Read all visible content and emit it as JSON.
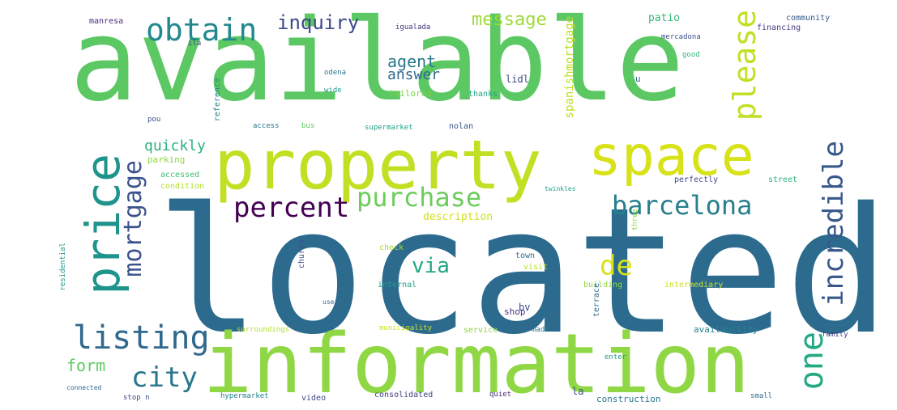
{
  "words": [
    {
      "text": "available",
      "color": "#5cc863"
    },
    {
      "text": "located",
      "color": "#2c6b8e"
    },
    {
      "text": "information",
      "color": "#8fd744"
    },
    {
      "text": "property",
      "color": "#c2df23"
    },
    {
      "text": "space",
      "color": "#d8e219"
    },
    {
      "text": "price",
      "color": "#1f948c"
    },
    {
      "text": "obtain",
      "color": "#23898e"
    },
    {
      "text": "please",
      "color": "#c2df23"
    },
    {
      "text": "purchase",
      "color": "#6ccd5a"
    },
    {
      "text": "percent",
      "color": "#440154"
    },
    {
      "text": "barcelona",
      "color": "#277f8e"
    },
    {
      "text": "incredible",
      "color": "#38588c"
    },
    {
      "text": "mortgage",
      "color": "#3b528b"
    },
    {
      "text": "listing",
      "color": "#31688e"
    },
    {
      "text": "city",
      "color": "#2a768e"
    },
    {
      "text": "one",
      "color": "#23a983"
    },
    {
      "text": "inquiry",
      "color": "#3e4989"
    },
    {
      "text": "message",
      "color": "#a0da39"
    },
    {
      "text": "agent",
      "color": "#2a788e"
    },
    {
      "text": "answer",
      "color": "#31688e"
    },
    {
      "text": "de",
      "color": "#d8e219"
    },
    {
      "text": "via",
      "color": "#22a884"
    },
    {
      "text": "form",
      "color": "#5ec962"
    },
    {
      "text": "quickly",
      "color": "#2db27d"
    },
    {
      "text": "description",
      "color": "#d0e11c"
    },
    {
      "text": "parking",
      "color": "#8fd744"
    },
    {
      "text": "accessed",
      "color": "#3dbc74"
    },
    {
      "text": "condition",
      "color": "#b5de2b"
    },
    {
      "text": "reference",
      "color": "#25848e"
    },
    {
      "text": "spanishmortgage",
      "color": "#bddf26"
    },
    {
      "text": "manresa",
      "color": "#472d7b"
    },
    {
      "text": "igualada",
      "color": "#46327e"
    },
    {
      "text": "patio",
      "color": "#35b779"
    },
    {
      "text": "community",
      "color": "#365c8d"
    },
    {
      "text": "mercadona",
      "color": "#3b528b"
    },
    {
      "text": "financing",
      "color": "#433e85"
    },
    {
      "text": "lidl",
      "color": "#3f4788"
    },
    {
      "text": "thanks",
      "color": "#20a486"
    },
    {
      "text": "tailored",
      "color": "#7ad151"
    },
    {
      "text": "odena",
      "color": "#2a788e"
    },
    {
      "text": "wide",
      "color": "#1e9b8a"
    },
    {
      "text": "access",
      "color": "#2a788e"
    },
    {
      "text": "bus",
      "color": "#5ec962"
    },
    {
      "text": "supermarket",
      "color": "#1fa187"
    },
    {
      "text": "nolan",
      "color": "#39568c"
    },
    {
      "text": "street",
      "color": "#2fb47c"
    },
    {
      "text": "perfectly",
      "color": "#3e4a89"
    },
    {
      "text": "twinkles",
      "color": "#20a386"
    },
    {
      "text": "church",
      "color": "#3e4a89"
    },
    {
      "text": "km",
      "color": "#31688e"
    },
    {
      "text": "check",
      "color": "#a0da39"
    },
    {
      "text": "town",
      "color": "#2d708e"
    },
    {
      "text": "visit",
      "color": "#b8de29"
    },
    {
      "text": "internal",
      "color": "#1f9e89"
    },
    {
      "text": "building",
      "color": "#93d741"
    },
    {
      "text": "intermediary",
      "color": "#cae11f"
    },
    {
      "text": "shop",
      "color": "#46327e"
    },
    {
      "text": "bv",
      "color": "#3e4989"
    },
    {
      "text": "municipality",
      "color": "#cae11f"
    },
    {
      "text": "service",
      "color": "#8bd646"
    },
    {
      "text": "made",
      "color": "#2a788e"
    },
    {
      "text": "terrace",
      "color": "#31688e"
    },
    {
      "text": "availability",
      "color": "#25838e"
    },
    {
      "text": "connect",
      "color": "#2c728e"
    },
    {
      "text": "family",
      "color": "#424086"
    },
    {
      "text": "enter",
      "color": "#1f968b"
    },
    {
      "text": "surroundings",
      "color": "#b5de2b"
    },
    {
      "text": "hypermarket",
      "color": "#26828e"
    },
    {
      "text": "video",
      "color": "#3f4788"
    },
    {
      "text": "consolidated",
      "color": "#424086"
    },
    {
      "text": "quiet",
      "color": "#472c7a"
    },
    {
      "text": "la",
      "color": "#3b528b"
    },
    {
      "text": "construction",
      "color": "#2a788e"
    },
    {
      "text": "small",
      "color": "#2f6c8e"
    },
    {
      "text": "connected",
      "color": "#31688e"
    },
    {
      "text": "stop n",
      "color": "#3e4a89"
    },
    {
      "text": "three",
      "color": "#8bd646"
    },
    {
      "text": "residential",
      "color": "#1f9a8a"
    },
    {
      "text": "good",
      "color": "#35b779"
    },
    {
      "text": "u",
      "color": "#31688e"
    },
    {
      "text": "pou",
      "color": "#3e4989"
    },
    {
      "text": "ila",
      "color": "#404387"
    },
    {
      "text": "use",
      "color": "#2e6e8e"
    }
  ]
}
